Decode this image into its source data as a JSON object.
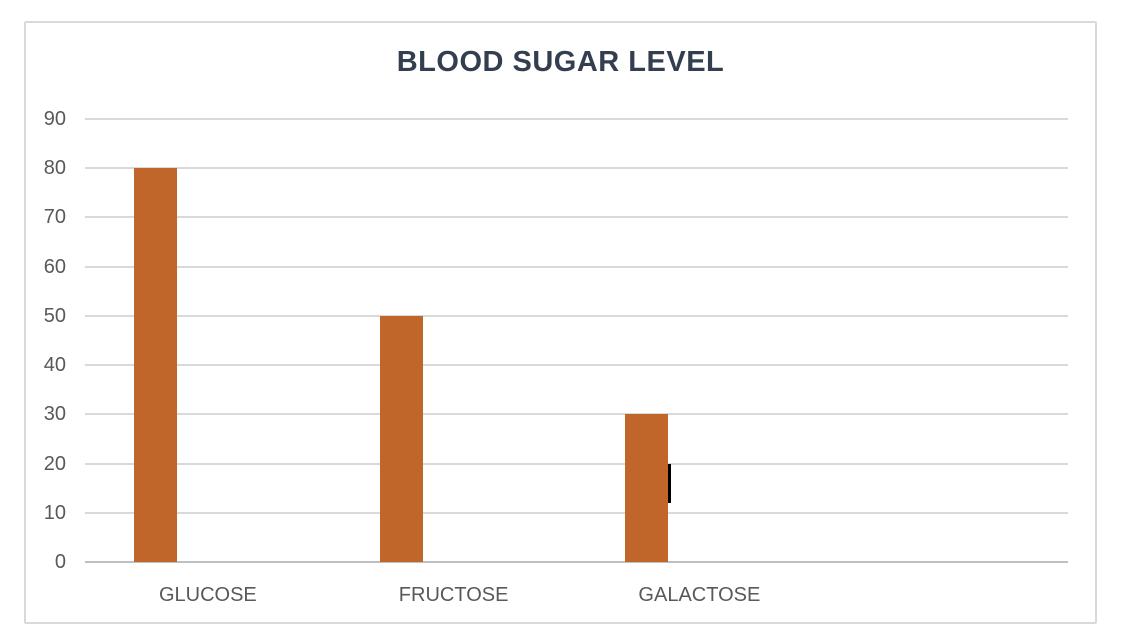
{
  "chart_data": {
    "type": "bar",
    "title": "BLOOD SUGAR LEVEL",
    "categories": [
      "GLUCOSE",
      "FRUCTOSE",
      "GALACTOSE"
    ],
    "values": [
      80,
      50,
      30
    ],
    "xlabel": "",
    "ylabel": "",
    "ylim": [
      0,
      90
    ],
    "yticks": [
      0,
      10,
      20,
      30,
      40,
      50,
      60,
      70,
      80,
      90
    ],
    "grid": true,
    "legend_position": "none",
    "layout_hints": {
      "category_slots": 4,
      "bars_offset_left_of_slot_center": true
    },
    "colors": {
      "bar": "#C1662B",
      "title_text": "#333F50",
      "tick_label": "#595959",
      "gridline": "#D9D9D9",
      "axis_line": "#BFBFBF",
      "frame_border": "#D9D9D9",
      "background": "#FFFFFF",
      "cursor_artifact": "#000000"
    }
  },
  "artifacts": {
    "text_cursor": {
      "description": "black text caret at right edge of GALACTOSE bar",
      "color": "#000000"
    }
  }
}
